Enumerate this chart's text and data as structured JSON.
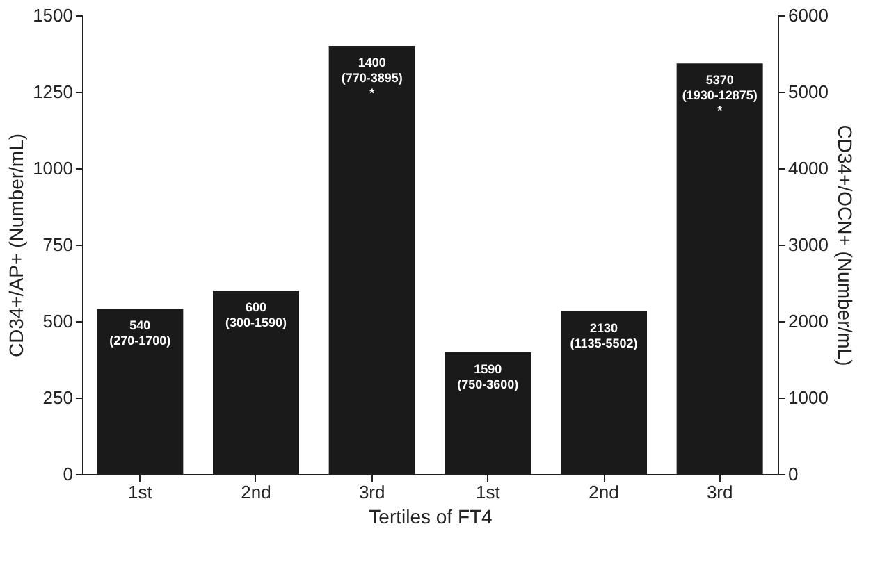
{
  "chart_data": {
    "type": "bar",
    "xlabel": "Tertiles of FT4",
    "ylabel": "CD34+/AP+ (Number/mL)",
    "y2label": "CD34+/OCN+ (Number/mL)",
    "categories": [
      "1st",
      "2nd",
      "3rd",
      "1st",
      "2nd",
      "3rd"
    ],
    "series": [
      {
        "color": "#1a1a1a",
        "values": [
          540,
          600,
          1400,
          null,
          null,
          null
        ],
        "value_labels": [
          "540\n(270-1700)",
          "600\n(300-1590)",
          "1400\n(770-3895)\n\n*",
          null,
          null,
          null
        ]
      },
      {
        "color": "#1a1a1a",
        "axis": "y2",
        "values": [
          null,
          null,
          null,
          1590,
          2130,
          5370
        ],
        "value_labels": [
          null,
          null,
          null,
          "1590\n(750-3600)",
          "2130\n(1135-5502)",
          "5370\n(1930-12875)\n\n*"
        ]
      }
    ],
    "ylim": [
      0,
      1500
    ],
    "yticks": [
      0,
      250,
      500,
      750,
      1000,
      1250,
      1500
    ],
    "y2lim": [
      0,
      6000
    ],
    "y2ticks": [
      0,
      1000,
      2000,
      3000,
      4000,
      5000,
      6000
    ],
    "grid": false
  }
}
